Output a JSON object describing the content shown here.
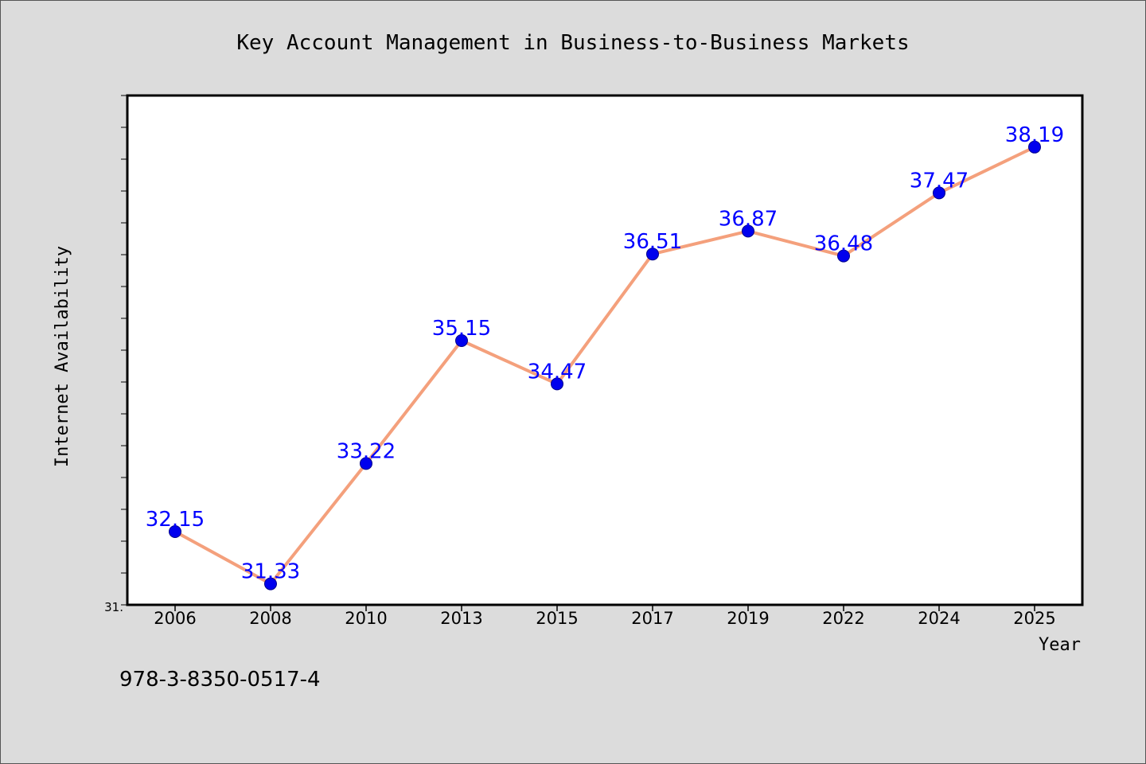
{
  "chart_data": {
    "type": "line",
    "title": "Key Account Management in Business-to-Business Markets",
    "xlabel": "Year",
    "ylabel": "Internet Availability",
    "categories": [
      "2006",
      "2008",
      "2010",
      "2013",
      "2015",
      "2017",
      "2019",
      "2022",
      "2024",
      "2025"
    ],
    "series": [
      {
        "values": [
          32.15,
          31.33,
          33.22,
          35.15,
          34.47,
          36.51,
          36.87,
          36.48,
          37.47,
          38.19
        ],
        "data_labels": [
          "32.15",
          "31.33",
          "33.22",
          "35.15",
          "34.47",
          "36.51",
          "36.87",
          "36.48",
          "37.47",
          "38.19"
        ]
      }
    ],
    "ylim": [
      31.0,
      39.0
    ],
    "y_tick_label": "31.",
    "grid": false,
    "colors": {
      "line": "#f4a07c",
      "marker": "#0000ee",
      "marker_edge": "#00008b",
      "data_label": "#0000ff",
      "plot_bg": "#ffffff",
      "page_bg": "#dcdcdc"
    }
  },
  "footer": {
    "isbn": "978-3-8350-0517-4"
  }
}
